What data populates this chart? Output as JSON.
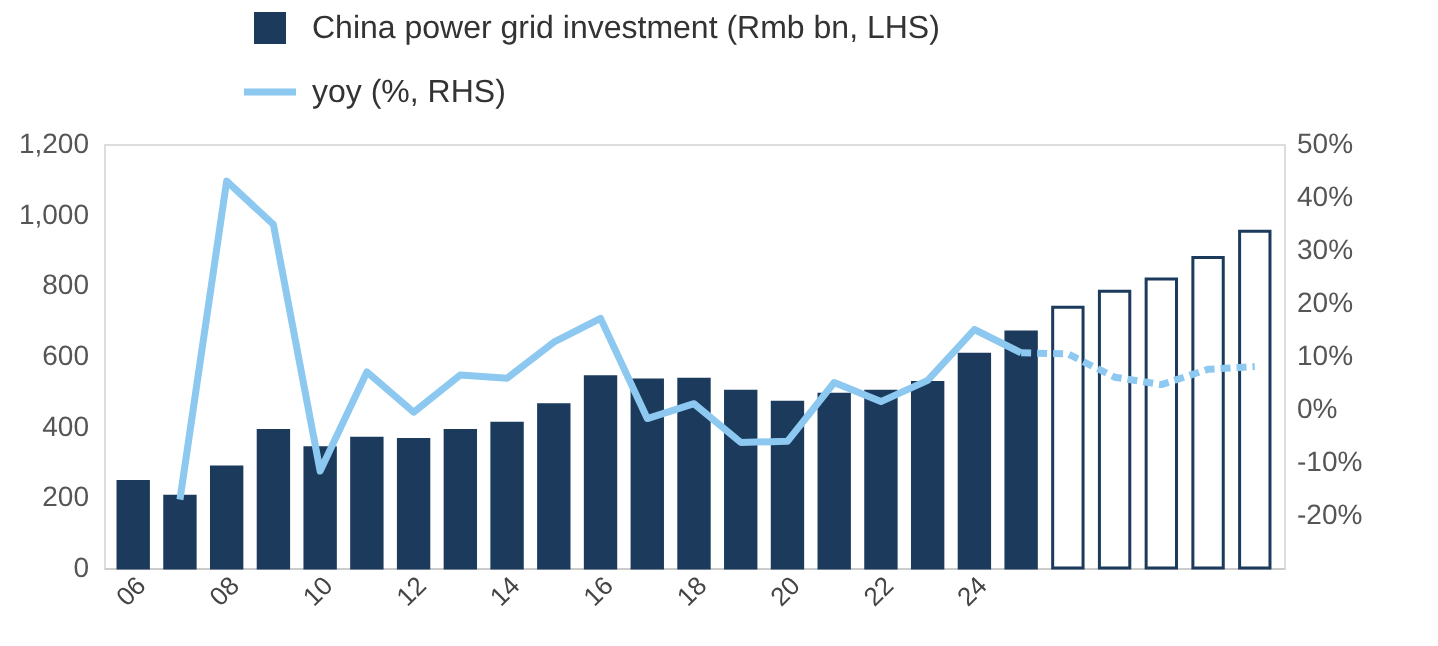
{
  "chart_data": {
    "type": "bar",
    "categories": [
      "06",
      null,
      "08",
      null,
      "10",
      null,
      "12",
      null,
      "14",
      null,
      "16",
      null,
      "18",
      null,
      "20",
      null,
      "22",
      null,
      "24",
      null,
      null,
      null,
      null,
      null,
      null
    ],
    "series": [
      {
        "name": "China power grid investment (Rmb bn, LHS)",
        "color": "#1b3a5c",
        "values": [
          245,
          203,
          286,
          389,
          340,
          367,
          364,
          389,
          410,
          462,
          541,
          532,
          534,
          500,
          469,
          492,
          500,
          525,
          605,
          668,
          null,
          null,
          null,
          null,
          null
        ]
      },
      {
        "color": "#ffffff",
        "values": [
          null,
          null,
          null,
          null,
          null,
          null,
          null,
          null,
          null,
          null,
          null,
          null,
          null,
          null,
          null,
          null,
          null,
          null,
          null,
          null,
          738,
          783,
          818,
          879,
          953
        ]
      },
      {
        "name": "yoy (%, RHS)",
        "type": "line",
        "axis": "y2",
        "color": "#8cc8f0",
        "line_style": "solid",
        "values": [
          null,
          -17.1,
          43.0,
          34.8,
          -11.7,
          7.0,
          -0.6,
          6.4,
          5.8,
          12.6,
          17.1,
          -1.8,
          1.0,
          -6.3,
          -6.1,
          5.0,
          1.4,
          5.4,
          15.0,
          10.6,
          null,
          null,
          null,
          null,
          null
        ]
      },
      {
        "type": "line",
        "axis": "y2",
        "color": "#8cc8f0",
        "line_style": "dashed",
        "values": [
          null,
          null,
          null,
          null,
          null,
          null,
          null,
          null,
          null,
          null,
          null,
          null,
          null,
          null,
          null,
          null,
          null,
          null,
          null,
          10.6,
          10.4,
          6.0,
          4.6,
          7.5,
          8.0
        ]
      }
    ],
    "ylim": [
      0,
      1200
    ],
    "yticks": [
      {
        "value": 0,
        "label": "0"
      },
      {
        "value": 200,
        "label": "200"
      },
      {
        "value": 400,
        "label": "400"
      },
      {
        "value": 600,
        "label": "600"
      },
      {
        "value": 800,
        "label": "800"
      },
      {
        "value": 1000,
        "label": "1,000"
      },
      {
        "value": 1200,
        "label": "1,200"
      }
    ],
    "y2lim": [
      -30,
      50
    ],
    "y2ticks": [
      {
        "value": -20,
        "label": "-20%"
      },
      {
        "value": -10,
        "label": "-10%"
      },
      {
        "value": 0,
        "label": "0%"
      },
      {
        "value": 10,
        "label": "10%"
      },
      {
        "value": 20,
        "label": "20%"
      },
      {
        "value": 30,
        "label": "30%"
      },
      {
        "value": 40,
        "label": "40%"
      },
      {
        "value": 50,
        "label": "50%"
      }
    ],
    "legend": "top left",
    "grid": false
  }
}
